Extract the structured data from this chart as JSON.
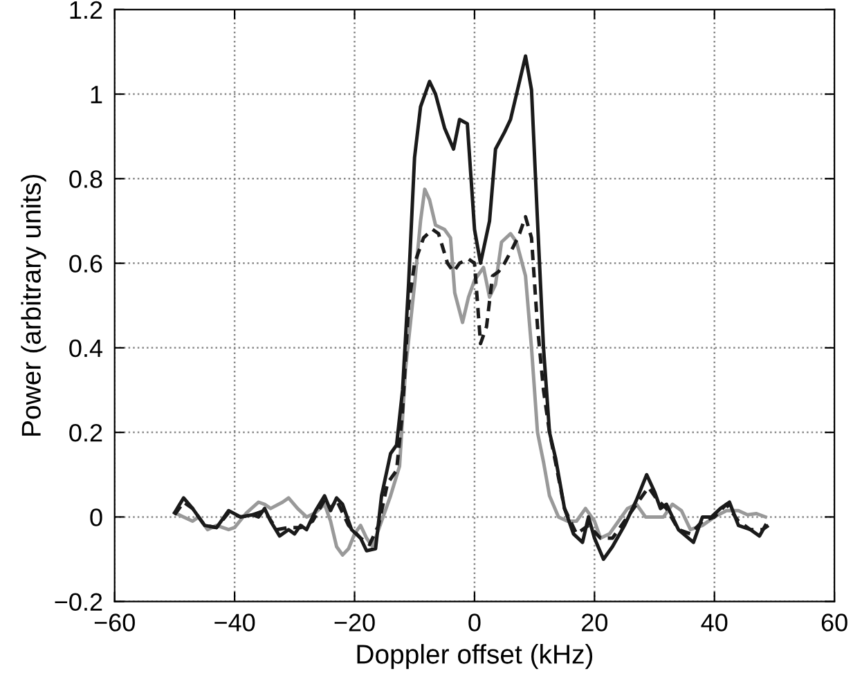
{
  "chart_data": {
    "type": "line",
    "xlabel": "Doppler offset (kHz)",
    "ylabel": "Power (arbitrary units)",
    "xlim": [
      -60,
      60
    ],
    "ylim": [
      -0.2,
      1.2
    ],
    "xticks": [
      {
        "value": -60,
        "label": "−60"
      },
      {
        "value": -40,
        "label": "−40"
      },
      {
        "value": -20,
        "label": "−20"
      },
      0,
      20,
      40,
      60
    ],
    "yticks": [
      {
        "value": -0.2,
        "label": "−0.2"
      },
      0,
      0.2,
      0.4,
      0.6,
      0.8,
      1,
      1.2
    ],
    "grid": true,
    "series": [
      {
        "color": "#999999",
        "line_style": "solid",
        "x": [
          -50,
          -48.5,
          -47,
          -46,
          -44.5,
          -43,
          -41,
          -40,
          -38,
          -36,
          -35,
          -34,
          -32,
          -31,
          -29.5,
          -28,
          -26.5,
          -25,
          -24,
          -23,
          -22,
          -21,
          -20,
          -19,
          -18,
          -17,
          -16,
          -14,
          -12.5,
          -11.5,
          -10,
          -9,
          -8.3,
          -7.5,
          -6.5,
          -5,
          -4,
          -3.3,
          -2,
          -1,
          0,
          1.5,
          2.5,
          3.5,
          4.5,
          6,
          7,
          8.5,
          9.5,
          10.5,
          11.5,
          12.5,
          14,
          15.5,
          17,
          18.5,
          20,
          21,
          22.5,
          24,
          25.5,
          27,
          28.5,
          30,
          31.5,
          33,
          34.5,
          36,
          38,
          40,
          42,
          44,
          45.5,
          47,
          48.5
        ],
        "values": [
          0.01,
          0.0,
          -0.01,
          0.0,
          -0.03,
          -0.02,
          -0.03,
          -0.025,
          0.01,
          0.035,
          0.03,
          0.02,
          0.035,
          0.045,
          0.02,
          0.0,
          0.01,
          0.03,
          -0.01,
          -0.07,
          -0.09,
          -0.075,
          -0.04,
          -0.02,
          -0.05,
          -0.07,
          -0.03,
          0.05,
          0.12,
          0.35,
          0.55,
          0.7,
          0.775,
          0.75,
          0.69,
          0.68,
          0.66,
          0.53,
          0.46,
          0.52,
          0.56,
          0.59,
          0.52,
          0.55,
          0.65,
          0.67,
          0.65,
          0.57,
          0.4,
          0.2,
          0.13,
          0.05,
          0.0,
          -0.01,
          -0.01,
          0.02,
          -0.01,
          -0.05,
          -0.04,
          -0.01,
          0.02,
          0.03,
          0.0,
          0.0,
          0.0,
          0.03,
          0.015,
          -0.03,
          -0.02,
          0.0,
          0.015,
          0.015,
          0.005,
          0.008,
          0.0
        ]
      },
      {
        "color": "#1a1a1a",
        "line_style": "dashed",
        "x": [
          -50,
          -48.5,
          -47,
          -45,
          -43,
          -41,
          -39,
          -37,
          -35,
          -33,
          -31,
          -29,
          -27,
          -25,
          -24,
          -23,
          -21,
          -19,
          -17.5,
          -16,
          -14.5,
          -13,
          -12,
          -11,
          -10,
          -8.5,
          -7,
          -6,
          -4.5,
          -3.5,
          -2.5,
          -1,
          0,
          1,
          2,
          3,
          4,
          5,
          6.5,
          7.5,
          8.5,
          9.5,
          10.5,
          11.5,
          12.5,
          13.5,
          15,
          17,
          19,
          21,
          23,
          25,
          27,
          29,
          30.5,
          32,
          34,
          36,
          38,
          40,
          42,
          44,
          46,
          48,
          49
        ],
        "values": [
          0.005,
          0.035,
          0.02,
          -0.02,
          -0.025,
          0.01,
          0.0,
          0.005,
          0.015,
          -0.03,
          -0.025,
          -0.025,
          -0.01,
          0.04,
          0.02,
          0.04,
          -0.02,
          -0.05,
          -0.065,
          -0.02,
          0.08,
          0.11,
          0.25,
          0.5,
          0.6,
          0.66,
          0.68,
          0.67,
          0.6,
          0.58,
          0.6,
          0.61,
          0.6,
          0.41,
          0.45,
          0.57,
          0.58,
          0.6,
          0.64,
          0.67,
          0.71,
          0.66,
          0.45,
          0.3,
          0.2,
          0.13,
          0.02,
          -0.04,
          -0.02,
          -0.05,
          -0.05,
          -0.01,
          0.03,
          0.07,
          0.04,
          0.02,
          -0.03,
          -0.04,
          -0.01,
          0.0,
          0.03,
          -0.01,
          -0.03,
          -0.03,
          -0.02
        ]
      },
      {
        "color": "#1a1a1a",
        "line_style": "solid",
        "x": [
          -50,
          -48.5,
          -47,
          -45,
          -43,
          -41,
          -39,
          -37,
          -36,
          -35,
          -34,
          -32.5,
          -31,
          -30,
          -29,
          -28,
          -26.5,
          -25,
          -24,
          -23,
          -22,
          -20.5,
          -19,
          -18,
          -16.5,
          -15.5,
          -14,
          -13,
          -12,
          -11,
          -10,
          -9,
          -7.5,
          -6.5,
          -5,
          -3.5,
          -2.5,
          -1.2,
          0,
          1,
          2.5,
          3.5,
          5,
          6,
          7.5,
          8.5,
          9.5,
          10.5,
          11.5,
          12.5,
          13.5,
          15,
          16.5,
          18,
          19,
          20,
          21.5,
          23,
          25,
          27,
          28.7,
          30,
          31,
          32,
          34,
          36.5,
          38,
          39.5,
          41,
          42.5,
          44,
          46,
          47.5,
          48.5
        ],
        "values": [
          0.01,
          0.045,
          0.02,
          -0.02,
          -0.025,
          0.015,
          0.0,
          0.005,
          0.0,
          0.02,
          -0.01,
          -0.045,
          -0.03,
          -0.04,
          -0.02,
          -0.03,
          0.015,
          0.05,
          0.015,
          0.045,
          0.03,
          -0.03,
          -0.05,
          -0.08,
          -0.075,
          0.05,
          0.15,
          0.17,
          0.3,
          0.55,
          0.85,
          0.97,
          1.03,
          1.0,
          0.92,
          0.87,
          0.94,
          0.93,
          0.68,
          0.6,
          0.7,
          0.87,
          0.91,
          0.94,
          1.03,
          1.09,
          1.01,
          0.7,
          0.4,
          0.2,
          0.14,
          0.02,
          -0.04,
          -0.06,
          0.0,
          -0.05,
          -0.1,
          -0.07,
          -0.02,
          0.04,
          0.1,
          0.06,
          0.02,
          0.03,
          -0.03,
          -0.06,
          0.0,
          0.0,
          0.02,
          0.035,
          -0.02,
          -0.03,
          -0.045,
          -0.02
        ]
      }
    ]
  }
}
